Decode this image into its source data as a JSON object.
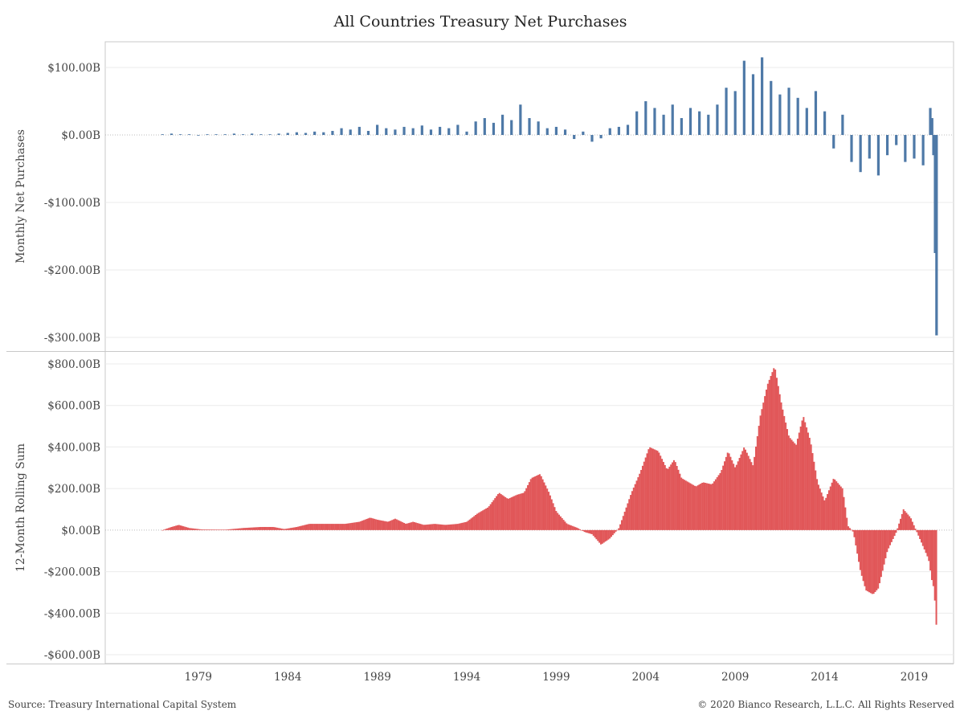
{
  "title": "All Countries Treasury Net Purchases",
  "source": "Source: Treasury International Capital System",
  "copyright": "© 2020 Bianco Research, L.L.C. All Rights Reserved",
  "colors": {
    "monthly": "#4e79a7",
    "rolling": "#e15759",
    "grid": "#ebebeb",
    "zero": "#bbbbbb",
    "frame": "#c8c8c8"
  },
  "chart_data": [
    {
      "type": "bar",
      "name": "monthly",
      "ylabel": "Monthly Net Purchases",
      "ylim": [
        -300,
        100
      ],
      "y_ticks": [
        100,
        0,
        -100,
        -200,
        -300
      ],
      "y_tick_labels": [
        "$100.00B",
        "$0.00B",
        "-$100.00B",
        "-$200.00B",
        "-$300.00B"
      ],
      "x_range": [
        1973.8,
        2021.2
      ],
      "x_ticks": [
        1979,
        1984,
        1989,
        1994,
        1999,
        2004,
        2009,
        2014,
        2019
      ],
      "x_tick_labels": [
        "1979",
        "1984",
        "1989",
        "1994",
        "1999",
        "2004",
        "2009",
        "2014",
        "2019"
      ],
      "grid": true,
      "units": "USD billions",
      "series": [
        {
          "x": [
            1977.0,
            1977.5,
            1978.0,
            1978.5,
            1979.0,
            1979.5,
            1980.0,
            1980.5,
            1981.0,
            1981.5,
            1982.0,
            1982.5,
            1983.0,
            1983.5,
            1984.0,
            1984.5,
            1985.0,
            1985.5,
            1986.0,
            1986.5,
            1987.0,
            1987.5,
            1988.0,
            1988.5,
            1989.0,
            1989.5,
            1990.0,
            1990.5,
            1991.0,
            1991.5,
            1992.0,
            1992.5,
            1993.0,
            1993.5,
            1994.0,
            1994.5,
            1995.0,
            1995.5,
            1996.0,
            1996.5,
            1997.0,
            1997.5,
            1998.0,
            1998.5,
            1999.0,
            1999.5,
            2000.0,
            2000.5,
            2001.0,
            2001.5,
            2002.0,
            2002.5,
            2003.0,
            2003.5,
            2004.0,
            2004.5,
            2005.0,
            2005.5,
            2006.0,
            2006.5,
            2007.0,
            2007.5,
            2008.0,
            2008.5,
            2009.0,
            2009.5,
            2010.0,
            2010.5,
            2011.0,
            2011.5,
            2012.0,
            2012.5,
            2013.0,
            2013.5,
            2014.0,
            2014.5,
            2015.0,
            2015.5,
            2016.0,
            2016.5,
            2017.0,
            2017.5,
            2018.0,
            2018.5,
            2019.0,
            2019.5,
            2019.9,
            2020.0,
            2020.08,
            2020.17,
            2020.25
          ],
          "values": [
            1,
            2,
            1,
            1,
            0,
            1,
            1,
            1,
            2,
            1,
            2,
            1,
            1,
            2,
            3,
            4,
            3,
            5,
            4,
            6,
            10,
            8,
            12,
            6,
            15,
            10,
            8,
            12,
            10,
            14,
            8,
            12,
            10,
            15,
            5,
            20,
            25,
            18,
            30,
            22,
            45,
            25,
            20,
            10,
            12,
            8,
            -6,
            5,
            -10,
            -5,
            10,
            12,
            15,
            35,
            50,
            40,
            30,
            45,
            25,
            40,
            35,
            30,
            45,
            70,
            65,
            110,
            90,
            115,
            80,
            60,
            70,
            55,
            40,
            65,
            35,
            -20,
            30,
            -40,
            -55,
            -35,
            -60,
            -30,
            -15,
            -40,
            -35,
            -45,
            40,
            25,
            -30,
            -175,
            -297
          ]
        }
      ]
    },
    {
      "type": "area",
      "name": "rolling",
      "ylabel": "12-Month Rolling Sum",
      "ylim": [
        -600,
        800
      ],
      "y_ticks": [
        800,
        600,
        400,
        200,
        0,
        -200,
        -400,
        -600
      ],
      "y_tick_labels": [
        "$800.00B",
        "$600.00B",
        "$400.00B",
        "$200.00B",
        "$0.00B",
        "-$200.00B",
        "-$400.00B",
        "-$600.00B"
      ],
      "x_range": [
        1973.8,
        2021.2
      ],
      "x_ticks": [
        1979,
        1984,
        1989,
        1994,
        1999,
        2004,
        2009,
        2014,
        2019
      ],
      "x_tick_labels": [
        "1979",
        "1984",
        "1989",
        "1994",
        "1999",
        "2004",
        "2009",
        "2014",
        "2019"
      ],
      "grid": true,
      "units": "USD billions",
      "series": [
        {
          "x": [
            1977.0,
            1977.5,
            1977.9,
            1978.5,
            1979.2,
            1980.5,
            1981.5,
            1982.5,
            1983.2,
            1983.8,
            1984.5,
            1985.2,
            1986.2,
            1987.2,
            1988.0,
            1988.6,
            1989.0,
            1989.6,
            1990.0,
            1990.6,
            1991.0,
            1991.6,
            1992.2,
            1992.8,
            1993.5,
            1994.0,
            1994.6,
            1995.2,
            1995.8,
            1996.3,
            1996.8,
            1997.2,
            1997.6,
            1998.1,
            1998.6,
            1999.0,
            1999.6,
            2000.2,
            2000.6,
            2001.0,
            2001.5,
            2002.0,
            2002.5,
            2003.2,
            2003.7,
            2004.2,
            2004.7,
            2005.2,
            2005.6,
            2006.0,
            2006.4,
            2006.8,
            2007.2,
            2007.7,
            2008.2,
            2008.6,
            2009.0,
            2009.5,
            2010.0,
            2010.4,
            2010.8,
            2011.2,
            2011.6,
            2012.0,
            2012.4,
            2012.8,
            2013.2,
            2013.6,
            2014.0,
            2014.5,
            2015.0,
            2015.3,
            2015.6,
            2016.0,
            2016.3,
            2016.7,
            2017.0,
            2017.5,
            2018.0,
            2018.4,
            2018.8,
            2019.2,
            2019.5,
            2019.8,
            2020.0,
            2020.1,
            2020.2,
            2020.3
          ],
          "values": [
            0,
            15,
            25,
            10,
            3,
            2,
            10,
            15,
            15,
            5,
            15,
            30,
            30,
            30,
            40,
            60,
            50,
            40,
            55,
            30,
            40,
            25,
            30,
            25,
            30,
            40,
            80,
            110,
            180,
            150,
            170,
            180,
            250,
            270,
            180,
            90,
            30,
            10,
            -10,
            -20,
            -70,
            -40,
            10,
            180,
            280,
            400,
            380,
            290,
            340,
            250,
            230,
            210,
            230,
            220,
            280,
            380,
            300,
            400,
            310,
            550,
            700,
            790,
            600,
            450,
            410,
            550,
            430,
            230,
            140,
            250,
            200,
            20,
            -10,
            -200,
            -290,
            -310,
            -280,
            -100,
            -10,
            100,
            60,
            -20,
            -80,
            -140,
            -250,
            -280,
            -400,
            -570
          ]
        }
      ]
    }
  ]
}
